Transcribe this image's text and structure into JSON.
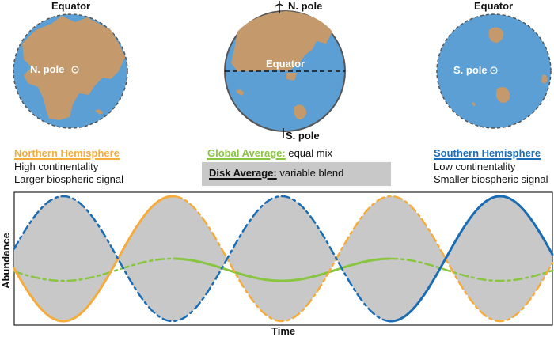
{
  "globes": {
    "north": {
      "top_label": "Equator",
      "center_label": "N. pole"
    },
    "side": {
      "top_label": "N. pole",
      "center_label": "Equator",
      "bottom_label": "S. pole"
    },
    "south": {
      "top_label": "Equator",
      "center_label": "S. pole"
    }
  },
  "legend": {
    "northern": {
      "title": "Northern Hemisphere",
      "line1": "High continentality",
      "line2": "Larger biospheric signal"
    },
    "global": {
      "title": "Global Average:",
      "desc": " equal mix"
    },
    "disk": {
      "title": "Disk Average:",
      "desc": " variable blend"
    },
    "southern": {
      "title": "Southern Hemisphere",
      "line1": "Low continentality",
      "line2": "Smaller biospheric signal"
    }
  },
  "plot": {
    "xlabel": "Time",
    "ylabel": "Abundance"
  },
  "colors": {
    "ocean": "#5b9fd4",
    "land": "#c49a6c",
    "northern": "#f5ac3c",
    "global": "#88c540",
    "southern": "#1a6db5",
    "fill": "#c8c8c8"
  }
}
